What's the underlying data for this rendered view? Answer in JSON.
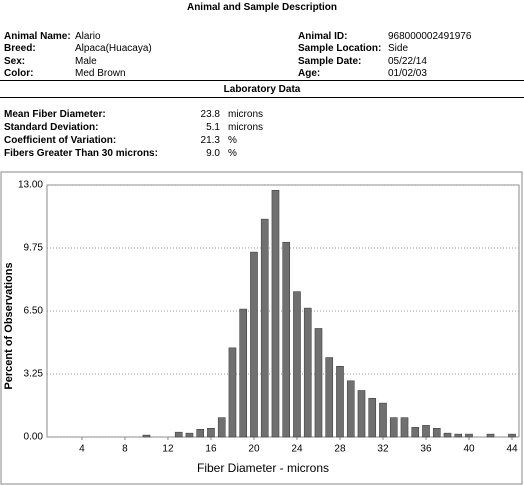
{
  "header": {
    "title": "Animal and Sample Description"
  },
  "animal": {
    "left": [
      {
        "label": "Animal Name:",
        "value": "Alario"
      },
      {
        "label": "Breed:",
        "value": "Alpaca(Huacaya)"
      },
      {
        "label": "Sex:",
        "value": "Male"
      },
      {
        "label": "Color:",
        "value": "Med Brown"
      }
    ],
    "right": [
      {
        "label": "Animal ID:",
        "value": "968000002491976"
      },
      {
        "label": "Sample Location:",
        "value": "Side"
      },
      {
        "label": "Sample Date:",
        "value": "05/22/14"
      },
      {
        "label": "Age:",
        "value": "01/02/03"
      }
    ]
  },
  "lab": {
    "title": "Laboratory Data",
    "rows": [
      {
        "label": "Mean Fiber Diameter:",
        "value": "23.8",
        "unit": "microns"
      },
      {
        "label": "Standard Deviation:",
        "value": "5.1",
        "unit": "microns"
      },
      {
        "label": "Coefficient of Variation:",
        "value": "21.3",
        "unit": "%"
      },
      {
        "label": "Fibers Greater Than 30 microns:",
        "value": "9.0",
        "unit": "%"
      }
    ]
  },
  "chart_data": {
    "type": "bar",
    "x_label": "Fiber Diameter - microns",
    "y_label": "Percent of Observations",
    "x": [
      10,
      13,
      14,
      15,
      16,
      17,
      18,
      19,
      20,
      21,
      22,
      23,
      24,
      25,
      26,
      27,
      28,
      29,
      30,
      31,
      32,
      33,
      34,
      35,
      36,
      37,
      38,
      39,
      40,
      42,
      44
    ],
    "values": [
      0.1,
      0.25,
      0.2,
      0.4,
      0.45,
      1.0,
      4.6,
      6.6,
      9.54,
      11.24,
      12.73,
      10.05,
      7.5,
      6.65,
      5.6,
      4.1,
      3.65,
      2.9,
      2.4,
      2.0,
      1.75,
      1.0,
      1.0,
      0.5,
      0.6,
      0.45,
      0.2,
      0.15,
      0.15,
      0.15,
      0.15
    ],
    "color": "#707070",
    "xlim": [
      0.75,
      44.65
    ],
    "xticks": [
      4,
      8,
      12,
      16,
      20,
      24,
      28,
      32,
      36,
      40,
      44
    ],
    "ylim": [
      0,
      13
    ],
    "yticks": [
      {
        "value": 0,
        "label": "0.00"
      },
      {
        "value": 3.25,
        "label": "3.25"
      },
      {
        "value": 6.5,
        "label": "6.50"
      },
      {
        "value": 9.75,
        "label": "9.75"
      },
      {
        "value": 13,
        "label": "13.00"
      }
    ],
    "grid": true
  }
}
